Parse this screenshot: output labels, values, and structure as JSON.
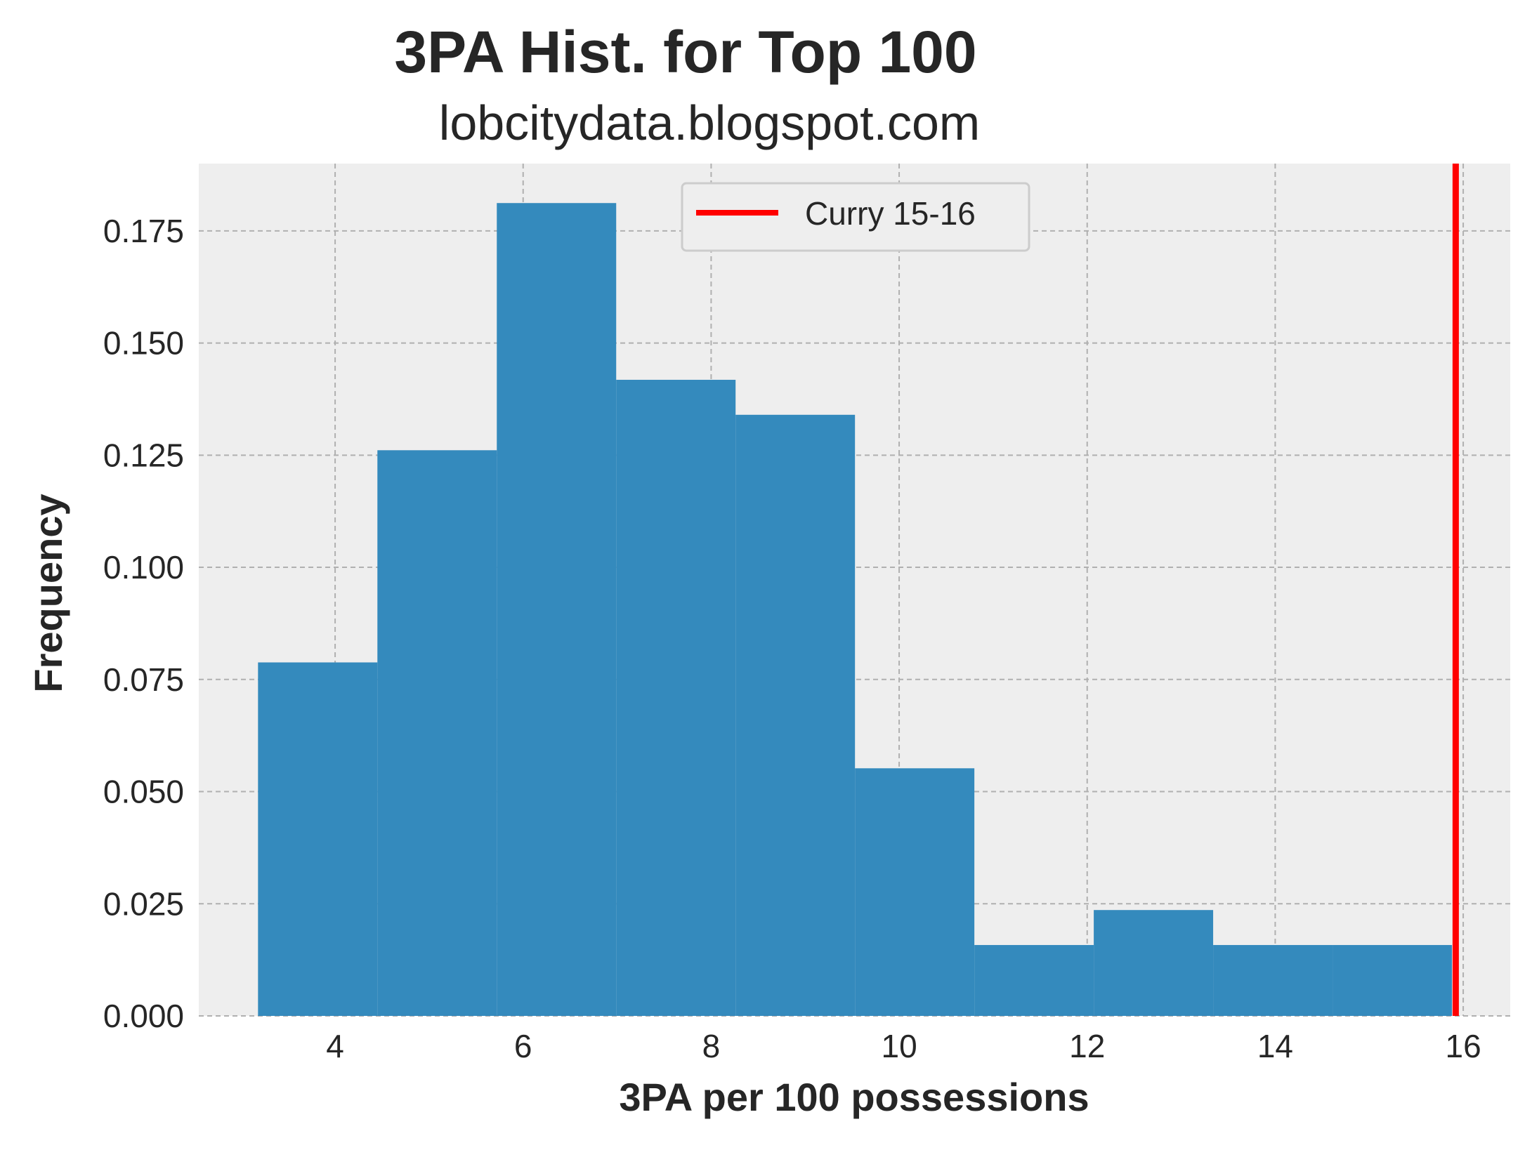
{
  "chart_data": {
    "type": "bar",
    "title": "3PA Hist. for Top 100",
    "subtitle": "lobcitydata.blogspot.com",
    "xlabel": "3PA per 100 possessions",
    "ylabel": "Frequency",
    "xlim": [
      2.55,
      16.5
    ],
    "ylim": [
      0,
      0.19
    ],
    "xticks": [
      4,
      6,
      8,
      10,
      12,
      14,
      16
    ],
    "xtick_labels": [
      "4",
      "6",
      "8",
      "10",
      "12",
      "14",
      "16"
    ],
    "yticks": [
      0,
      0.025,
      0.05,
      0.075,
      0.1,
      0.125,
      0.15,
      0.175
    ],
    "ytick_labels": [
      "0.000",
      "0.025",
      "0.050",
      "0.075",
      "0.100",
      "0.125",
      "0.150",
      "0.175"
    ],
    "bin_edges": [
      3.18,
      4.45,
      5.72,
      6.99,
      8.26,
      9.53,
      10.8,
      12.07,
      13.34,
      14.61,
      15.88
    ],
    "values": [
      0.0788,
      0.1261,
      0.1812,
      0.1418,
      0.134,
      0.0552,
      0.0158,
      0.0236,
      0.0158,
      0.0158
    ],
    "bar_color": "#348abd",
    "reference_line": {
      "x": 15.92,
      "label": "Curry 15-16",
      "color": "#ff0000"
    },
    "legend_position": "upper center",
    "grid": true,
    "background": "#eeeeee",
    "grid_color": "#b0b0b0"
  }
}
